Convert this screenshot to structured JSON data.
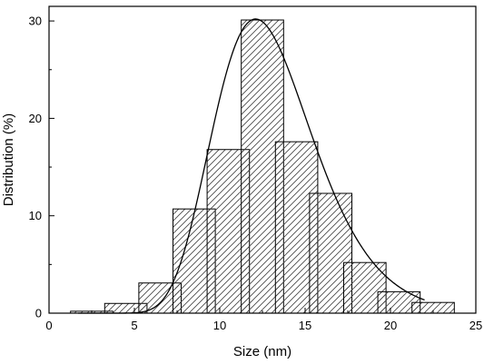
{
  "chart_data": {
    "type": "bar",
    "title": "",
    "xlabel": "Size (nm)",
    "ylabel": "Distribution (%)",
    "xlim": [
      0,
      25
    ],
    "ylim": [
      0,
      31.5
    ],
    "x_ticks": [
      "0",
      "5",
      "10",
      "15",
      "20",
      "25"
    ],
    "y_ticks": [
      "0",
      "10",
      "20",
      "30"
    ],
    "bin_width": 2,
    "bins": [
      {
        "center": 2.5,
        "value": 0.2
      },
      {
        "center": 4.5,
        "value": 1.0
      },
      {
        "center": 6.5,
        "value": 3.1
      },
      {
        "center": 8.5,
        "value": 10.7
      },
      {
        "center": 10.5,
        "value": 16.8
      },
      {
        "center": 12.5,
        "value": 30.1
      },
      {
        "center": 14.5,
        "value": 17.6
      },
      {
        "center": 16.5,
        "value": 12.3
      },
      {
        "center": 18.5,
        "value": 5.2
      },
      {
        "center": 20.5,
        "value": 2.2
      },
      {
        "center": 22.5,
        "value": 1.1
      }
    ],
    "fit_curve": {
      "type": "lognormal",
      "x_range": [
        1.7,
        22
      ],
      "peak_x": 12.1,
      "peak_y": 30.2
    },
    "bar_style": "diagonal-hatch",
    "grid": false,
    "legend": "none"
  }
}
